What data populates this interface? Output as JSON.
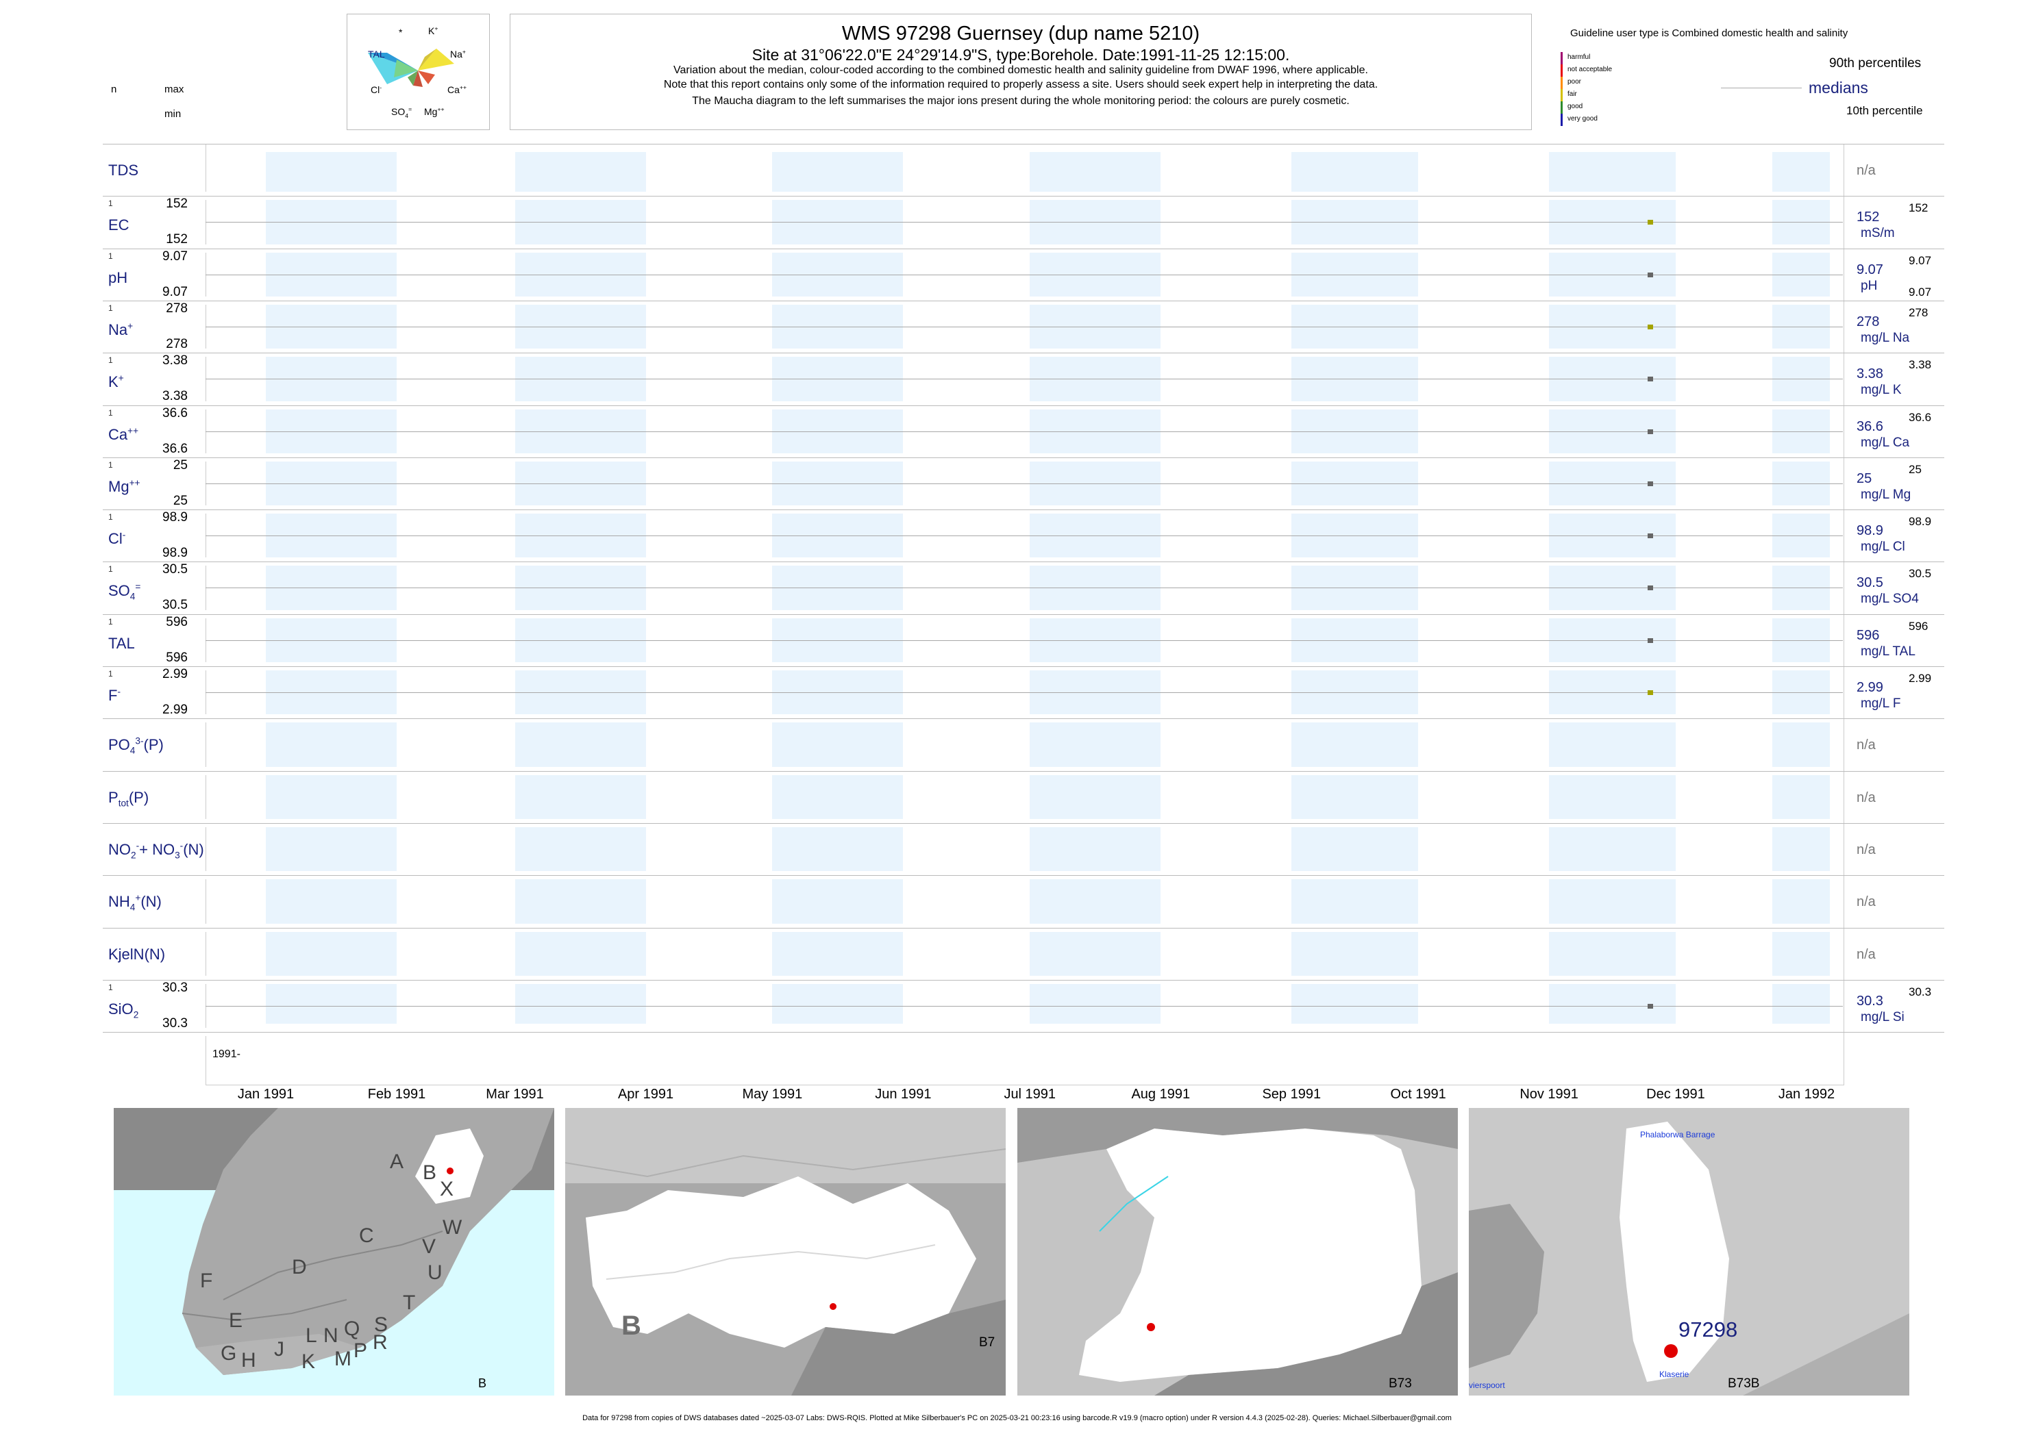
{
  "header": {
    "n_label": "n",
    "max_label": "max",
    "min_label": "min",
    "title": "WMS 97298  Guernsey (dup name 5210)",
    "site": "Site at 31°06'22.0\"E 24°29'14.9\"S, type:Borehole. Date:1991-11-25 12:15:00.",
    "note1": "Variation about the median,  colour-coded according to the combined domestic health and salinity guideline from DWAF 1996, where applicable.",
    "note2": "Note that this report contains only some of the information required to properly assess a site. Users should seek expert help in interpreting the data.",
    "note3": "The Maucha diagram to the left summarises the major ions present during the whole monitoring period: the colours are purely cosmetic."
  },
  "maucha": {
    "labels": {
      "star": "*",
      "k": "K",
      "k_sup": "+",
      "tal": "TAL",
      "na": "Na",
      "na_sup": "+",
      "cl": "Cl",
      "cl_sup": "-",
      "ca": "Ca",
      "ca_sup": "++",
      "so4": "SO",
      "so4_sub": "4",
      "so4_sup": "=",
      "mg": "Mg",
      "mg_sup": "++"
    }
  },
  "legend": {
    "guideline": "Guideline user type is Combined domestic health and salinity",
    "classes": [
      {
        "label": "harmful",
        "color": "#a0006e"
      },
      {
        "label": "not acceptable",
        "color": "#e8000b"
      },
      {
        "label": "poor",
        "color": "#ff8c00"
      },
      {
        "label": "fair",
        "color": "#d4c000"
      },
      {
        "label": "good",
        "color": "#2e8b2e"
      },
      {
        "label": "very good",
        "color": "#1c1caa"
      }
    ],
    "p90": "90th percentiles",
    "medians": "medians",
    "p10": "10th percentile"
  },
  "chart_data": {
    "type": "scatter",
    "x_range": [
      "1991-01-01",
      "1992-01-01"
    ],
    "x_axis_year_label": "1991-",
    "x_ticks": [
      "Jan 1991",
      "Feb 1991",
      "Mar 1991",
      "Apr 1991",
      "May 1991",
      "Jun 1991",
      "Jul 1991",
      "Aug 1991",
      "Sep 1991",
      "Oct 1991",
      "Nov 1991",
      "Dec 1991",
      "Jan 1992"
    ],
    "sample_date": "1991-11-25",
    "series": [
      {
        "name": "TDS",
        "label_html": "TDS",
        "n": "",
        "max": "",
        "min": "",
        "value": null,
        "unit": "",
        "right_value": "n/a"
      },
      {
        "name": "EC",
        "label_html": "EC",
        "n": "1",
        "max": "152",
        "min": "152",
        "value": 152,
        "unit": "mS/m",
        "right_value": "152",
        "p90": "152",
        "color": "#a4a400"
      },
      {
        "name": "pH",
        "label_html": "pH",
        "n": "1",
        "max": "9.07",
        "min": "9.07",
        "value": 9.07,
        "unit": "pH",
        "right_value": "9.07",
        "p90": "9.07",
        "p10": "9.07",
        "color": "#666"
      },
      {
        "name": "Na+",
        "label_html": "Na<sup>+</sup>",
        "n": "1",
        "max": "278",
        "min": "278",
        "value": 278,
        "unit": "mg/L Na",
        "right_value": "278",
        "p90": "278",
        "color": "#a4a400"
      },
      {
        "name": "K+",
        "label_html": "K<sup>+</sup>",
        "n": "1",
        "max": "3.38",
        "min": "3.38",
        "value": 3.38,
        "unit": "mg/L K",
        "right_value": "3.38",
        "p90": "3.38",
        "color": "#666"
      },
      {
        "name": "Ca++",
        "label_html": "Ca<sup>++</sup>",
        "n": "1",
        "max": "36.6",
        "min": "36.6",
        "value": 36.6,
        "unit": "mg/L Ca",
        "right_value": "36.6",
        "p90": "36.6",
        "color": "#666"
      },
      {
        "name": "Mg++",
        "label_html": "Mg<sup>++</sup>",
        "n": "1",
        "max": "25",
        "min": "25",
        "value": 25,
        "unit": "mg/L Mg",
        "right_value": "25",
        "p90": "25",
        "color": "#666"
      },
      {
        "name": "Cl-",
        "label_html": "Cl<sup>-</sup>",
        "n": "1",
        "max": "98.9",
        "min": "98.9",
        "value": 98.9,
        "unit": "mg/L Cl",
        "right_value": "98.9",
        "p90": "98.9",
        "color": "#666"
      },
      {
        "name": "SO4=",
        "label_html": "SO<sub>4</sub><sup>=</sup>",
        "n": "1",
        "max": "30.5",
        "min": "30.5",
        "value": 30.5,
        "unit": "mg/L SO4",
        "right_value": "30.5",
        "p90": "30.5",
        "color": "#666"
      },
      {
        "name": "TAL",
        "label_html": "TAL",
        "n": "1",
        "max": "596",
        "min": "596",
        "value": 596,
        "unit": "mg/L TAL",
        "right_value": "596",
        "p90": "596",
        "color": "#666"
      },
      {
        "name": "F-",
        "label_html": "F<sup>-</sup>",
        "n": "1",
        "max": "2.99",
        "min": "2.99",
        "value": 2.99,
        "unit": "mg/L F",
        "right_value": "2.99",
        "p90": "2.99",
        "color": "#a4a400"
      },
      {
        "name": "PO4(P)",
        "label_html": "PO<sub>4</sub><sup>3-</sup>(P)",
        "n": "",
        "max": "",
        "min": "",
        "value": null,
        "unit": "",
        "right_value": "n/a"
      },
      {
        "name": "Ptot(P)",
        "label_html": "P<sub>tot</sub>(P)",
        "n": "",
        "max": "",
        "min": "",
        "value": null,
        "unit": "",
        "right_value": "n/a"
      },
      {
        "name": "NO2+NO3(N)",
        "label_html": "NO<sub>2</sub><sup>-</sup>+ NO<sub>3</sub><sup>-</sup>(N)",
        "n": "",
        "max": "",
        "min": "",
        "value": null,
        "unit": "",
        "right_value": "n/a"
      },
      {
        "name": "NH4(N)",
        "label_html": "NH<sub>4</sub><sup>+</sup>(N)",
        "n": "",
        "max": "",
        "min": "",
        "value": null,
        "unit": "",
        "right_value": "n/a"
      },
      {
        "name": "KjelN(N)",
        "label_html": "KjelN(N)",
        "n": "",
        "max": "",
        "min": "",
        "value": null,
        "unit": "",
        "right_value": "n/a"
      },
      {
        "name": "SiO2",
        "label_html": "SiO<sub>2</sub>",
        "n": "1",
        "max": "30.3",
        "min": "30.3",
        "value": 30.3,
        "unit": "mg/L Si",
        "right_value": "30.3",
        "p90": "30.3",
        "color": "#666"
      }
    ]
  },
  "maps": {
    "map1_labels": [
      "A",
      "B",
      "X",
      "C",
      "W",
      "D",
      "V",
      "U",
      "F",
      "T",
      "E",
      "S",
      "J",
      "L",
      "N",
      "Q",
      "G",
      "H",
      "K",
      "M",
      "P",
      "R"
    ],
    "map1_corner": "B",
    "map2_letter": "B",
    "map2_corner": "B7",
    "map3_corner": "B73",
    "map4_corner": "B73B",
    "map4_site": "97298",
    "map4_top_label": "Phalaborwa Barrage",
    "map4_bottom_label": "Klaserie",
    "map4_left_label": "vierspoort"
  },
  "footer": "Data for 97298 from copies of DWS databases dated ~2025-03-07 Labs: DWS-RQIS. Plotted at Mike Silberbauer's PC on 2025-03-21 00:23:16 using barcode.R v19.9 (macro option) under R version 4.4.3 (2025-02-28). Queries: Michael.Silberbauer@gmail.com"
}
